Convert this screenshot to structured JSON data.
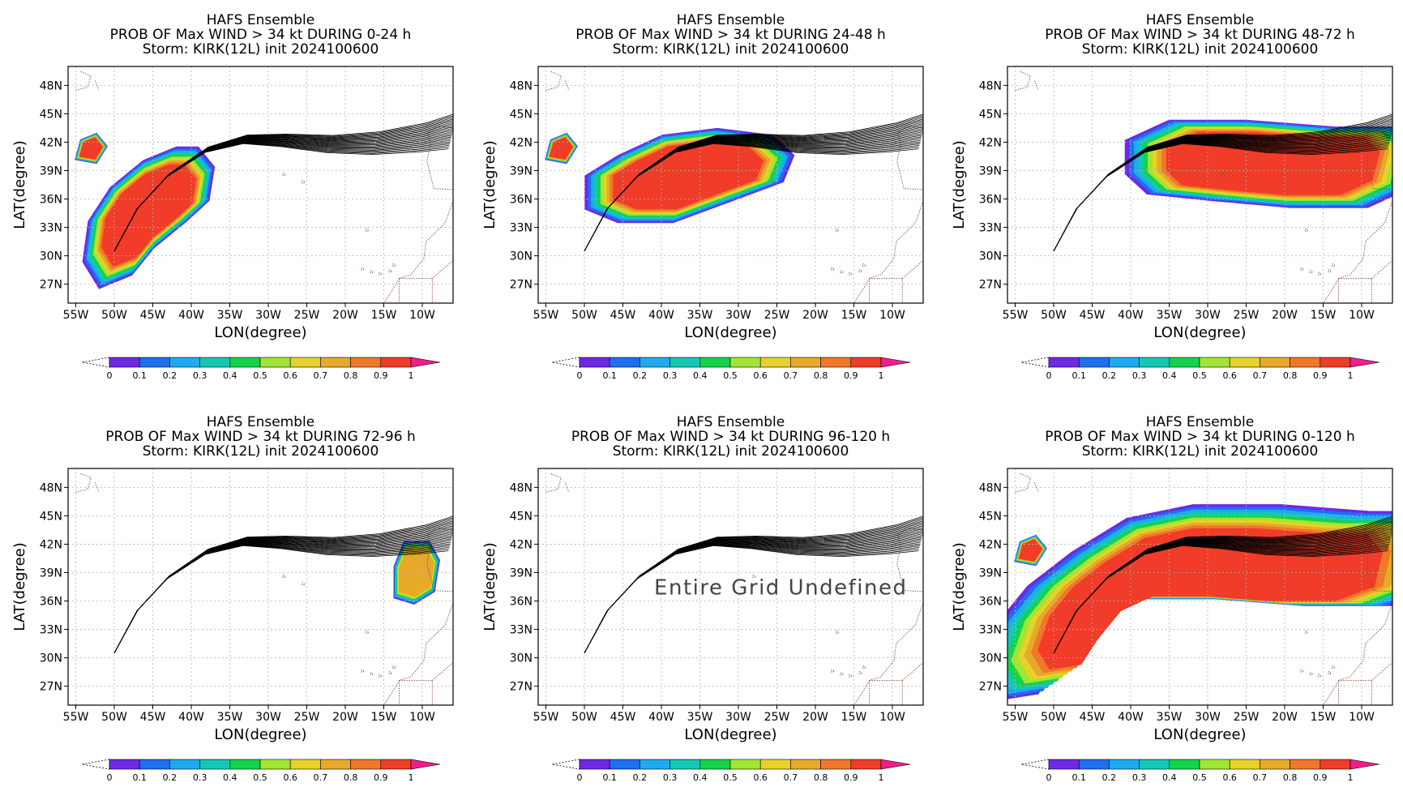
{
  "figure": {
    "panels": [
      {
        "title": "HAFS Ensemble",
        "subtitle": "PROB OF Max WIND > 34 kt DURING  0-24 h",
        "storm": "Storm: KIRK(12L) init 2024100600",
        "note": ""
      },
      {
        "title": "HAFS Ensemble",
        "subtitle": "PROB OF Max WIND > 34 kt DURING 24-48 h",
        "storm": "Storm: KIRK(12L) init 2024100600",
        "note": ""
      },
      {
        "title": "HAFS Ensemble",
        "subtitle": "PROB OF Max WIND > 34 kt DURING 48-72 h",
        "storm": "Storm: KIRK(12L) init 2024100600",
        "note": ""
      },
      {
        "title": "HAFS Ensemble",
        "subtitle": "PROB OF Max WIND > 34 kt DURING 72-96 h",
        "storm": "Storm: KIRK(12L) init 2024100600",
        "note": ""
      },
      {
        "title": "HAFS Ensemble",
        "subtitle": "PROB OF Max WIND > 34 kt DURING 96-120 h",
        "storm": "Storm: KIRK(12L) init 2024100600",
        "note": "Entire Grid Undefined"
      },
      {
        "title": "HAFS Ensemble",
        "subtitle": "PROB OF Max WIND > 34 kt DURING 0-120 h",
        "storm": "Storm: KIRK(12L) init 2024100600",
        "note": ""
      }
    ],
    "xlabel": "LON(degree)",
    "ylabel": "LAT(degree)",
    "xticks": [
      "55W",
      "50W",
      "45W",
      "40W",
      "35W",
      "30W",
      "25W",
      "20W",
      "15W",
      "10W"
    ],
    "yticks": [
      "48N",
      "45N",
      "42N",
      "39N",
      "36N",
      "33N",
      "30N",
      "27N"
    ],
    "colorbar": {
      "labels": [
        "0",
        "0.1",
        "0.2",
        "0.3",
        "0.4",
        "0.5",
        "0.6",
        "0.7",
        "0.8",
        "0.9",
        "1"
      ],
      "colors": [
        "#a000c8",
        "#6e28e6",
        "#1e6ef0",
        "#1eaaf0",
        "#12c8b4",
        "#14d24a",
        "#a0e632",
        "#e6d228",
        "#e6aa28",
        "#f07828",
        "#f03c28"
      ],
      "over_color": "#f01e8c"
    }
  },
  "chart_data": [
    {
      "type": "heatmap",
      "title": "HAFS Ensemble",
      "subtitle": "PROB OF Max WIND > 34 kt DURING  0-24 h",
      "xlabel": "LON(degree)",
      "ylabel": "LAT(degree)",
      "xlim": [
        -56,
        -6
      ],
      "ylim": [
        25,
        50
      ],
      "grid": true,
      "track_start": [
        -50,
        30.2
      ],
      "track_mean": [
        [
          -50,
          30.5
        ],
        [
          -47,
          35
        ],
        [
          -43,
          38.5
        ],
        [
          -38,
          41.2
        ],
        [
          -33,
          42.3
        ],
        [
          -28,
          42.2
        ],
        [
          -22,
          41.8
        ],
        [
          -16,
          41.9
        ],
        [
          -10,
          42.5
        ],
        [
          -6,
          43.2
        ]
      ],
      "prob_regions": [
        {
          "prob": 1.0,
          "outline": [
            [
              -50,
              29
            ],
            [
              -47,
              30
            ],
            [
              -45,
              32
            ],
            [
              -42,
              34
            ],
            [
              -40,
              35.5
            ],
            [
              -39.5,
              38
            ],
            [
              -41,
              39.5
            ],
            [
              -43,
              39.5
            ],
            [
              -46,
              38.5
            ],
            [
              -49,
              36.5
            ],
            [
              -51,
              34
            ],
            [
              -51.5,
              31
            ]
          ]
        },
        {
          "prob": 1.0,
          "outline": [
            [
              -54.5,
              40.5
            ],
            [
              -54,
              42
            ],
            [
              -52.5,
              42.5
            ],
            [
              -51.5,
              41.5
            ],
            [
              -52.5,
              40.2
            ]
          ]
        }
      ]
    },
    {
      "type": "heatmap",
      "title": "HAFS Ensemble",
      "subtitle": "PROB OF Max WIND > 34 kt DURING 24-48 h",
      "xlabel": "LON(degree)",
      "ylabel": "LAT(degree)",
      "xlim": [
        -56,
        -6
      ],
      "ylim": [
        25,
        50
      ],
      "grid": true,
      "track_start": [
        -50,
        30.2
      ],
      "track_mean": [
        [
          -50,
          30.5
        ],
        [
          -47,
          35
        ],
        [
          -43,
          38.5
        ],
        [
          -38,
          41.2
        ],
        [
          -33,
          42.3
        ],
        [
          -28,
          42.2
        ],
        [
          -22,
          41.8
        ],
        [
          -16,
          41.9
        ],
        [
          -10,
          42.5
        ],
        [
          -6,
          43.2
        ]
      ],
      "prob_regions": [
        {
          "prob": 1.0,
          "outline": [
            [
              -46,
              36
            ],
            [
              -43,
              35
            ],
            [
              -38,
              35
            ],
            [
              -33,
              36.5
            ],
            [
              -28,
              38
            ],
            [
              -27,
              40
            ],
            [
              -29,
              41.5
            ],
            [
              -34,
              42
            ],
            [
              -39,
              41.5
            ],
            [
              -43,
              40
            ],
            [
              -46,
              38.5
            ]
          ]
        },
        {
          "prob": 1.0,
          "outline": [
            [
              -54.5,
              40.5
            ],
            [
              -54,
              42
            ],
            [
              -52.5,
              42.5
            ],
            [
              -51.5,
              41.5
            ],
            [
              -52.5,
              40.2
            ]
          ]
        }
      ]
    },
    {
      "type": "heatmap",
      "title": "HAFS Ensemble",
      "subtitle": "PROB OF Max WIND > 34 kt DURING 48-72 h",
      "xlabel": "LON(degree)",
      "ylabel": "LAT(degree)",
      "xlim": [
        -56,
        -6
      ],
      "ylim": [
        25,
        50
      ],
      "grid": true,
      "track_start": [
        -50,
        30.2
      ],
      "track_mean": [
        [
          -50,
          30.5
        ],
        [
          -47,
          35
        ],
        [
          -43,
          38.5
        ],
        [
          -38,
          41.2
        ],
        [
          -33,
          42.3
        ],
        [
          -28,
          42.2
        ],
        [
          -22,
          41.8
        ],
        [
          -16,
          41.9
        ],
        [
          -10,
          42.5
        ],
        [
          -6,
          43.2
        ]
      ],
      "prob_regions": [
        {
          "prob": 1.0,
          "outline": [
            [
              -35,
              39
            ],
            [
              -33,
              37.5
            ],
            [
              -27,
              37
            ],
            [
              -20,
              36.5
            ],
            [
              -13,
              36.5
            ],
            [
              -9,
              38
            ],
            [
              -8,
              41
            ],
            [
              -10,
              42.5
            ],
            [
              -16,
              42.5
            ],
            [
              -24,
              43
            ],
            [
              -31,
              43
            ],
            [
              -35,
              41.5
            ]
          ]
        }
      ]
    },
    {
      "type": "heatmap",
      "title": "HAFS Ensemble",
      "subtitle": "PROB OF Max WIND > 34 kt DURING 72-96 h",
      "xlabel": "LON(degree)",
      "ylabel": "LAT(degree)",
      "xlim": [
        -56,
        -6
      ],
      "ylim": [
        25,
        50
      ],
      "grid": true,
      "track_start": [
        -50,
        30.2
      ],
      "track_mean": [
        [
          -50,
          30.5
        ],
        [
          -47,
          35
        ],
        [
          -43,
          38.5
        ],
        [
          -38,
          41.2
        ],
        [
          -33,
          42.3
        ],
        [
          -28,
          42.2
        ],
        [
          -22,
          41.8
        ],
        [
          -16,
          41.9
        ],
        [
          -10,
          42.5
        ],
        [
          -6,
          43.2
        ]
      ],
      "prob_regions": [
        {
          "prob": 0.8,
          "outline": [
            [
              -13,
              37
            ],
            [
              -11,
              36.5
            ],
            [
              -9,
              37.5
            ],
            [
              -8.5,
              40
            ],
            [
              -9.5,
              41.5
            ],
            [
              -12,
              41.5
            ],
            [
              -13,
              39.5
            ]
          ]
        }
      ]
    },
    {
      "type": "heatmap",
      "title": "HAFS Ensemble",
      "subtitle": "PROB OF Max WIND > 34 kt DURING 96-120 h",
      "xlabel": "LON(degree)",
      "ylabel": "LAT(degree)",
      "xlim": [
        -56,
        -6
      ],
      "ylim": [
        25,
        50
      ],
      "grid": true,
      "track_start": [
        -50,
        30.2
      ],
      "track_mean": [
        [
          -50,
          30.5
        ],
        [
          -47,
          35
        ],
        [
          -43,
          38.5
        ],
        [
          -38,
          41.2
        ],
        [
          -33,
          42.3
        ],
        [
          -28,
          42.2
        ],
        [
          -22,
          41.8
        ],
        [
          -16,
          41.9
        ],
        [
          -10,
          42.5
        ],
        [
          -6,
          43.2
        ]
      ],
      "prob_regions": []
    },
    {
      "type": "heatmap",
      "title": "HAFS Ensemble",
      "subtitle": "PROB OF Max WIND > 34 kt DURING 0-120 h",
      "xlabel": "LON(degree)",
      "ylabel": "LAT(degree)",
      "xlim": [
        -56,
        -6
      ],
      "ylim": [
        25,
        50
      ],
      "grid": true,
      "track_start": [
        -50,
        30.2
      ],
      "track_mean": [
        [
          -50,
          30.5
        ],
        [
          -47,
          35
        ],
        [
          -43,
          38.5
        ],
        [
          -38,
          41.2
        ],
        [
          -33,
          42.3
        ],
        [
          -28,
          42.2
        ],
        [
          -22,
          41.8
        ],
        [
          -16,
          41.9
        ],
        [
          -10,
          42.5
        ],
        [
          -6,
          43.2
        ]
      ],
      "prob_regions": [
        {
          "prob": 1.0,
          "outline": [
            [
              -50,
              29
            ],
            [
              -46,
              29.5
            ],
            [
              -44,
              32
            ],
            [
              -41,
              35
            ],
            [
              -37,
              36.5
            ],
            [
              -30,
              36.5
            ],
            [
              -22,
              36
            ],
            [
              -14,
              36
            ],
            [
              -9,
              37.5
            ],
            [
              -8,
              41
            ],
            [
              -10,
              43
            ],
            [
              -16,
              43
            ],
            [
              -24,
              43.5
            ],
            [
              -32,
              43.5
            ],
            [
              -38,
              42.5
            ],
            [
              -43,
              40
            ],
            [
              -47,
              37.5
            ],
            [
              -50,
              34.5
            ],
            [
              -51.5,
              31
            ]
          ]
        },
        {
          "prob": 1.0,
          "outline": [
            [
              -54.5,
              40.5
            ],
            [
              -54,
              42
            ],
            [
              -52.5,
              42.5
            ],
            [
              -51.5,
              41.5
            ],
            [
              -52.5,
              40.2
            ]
          ]
        }
      ]
    }
  ]
}
